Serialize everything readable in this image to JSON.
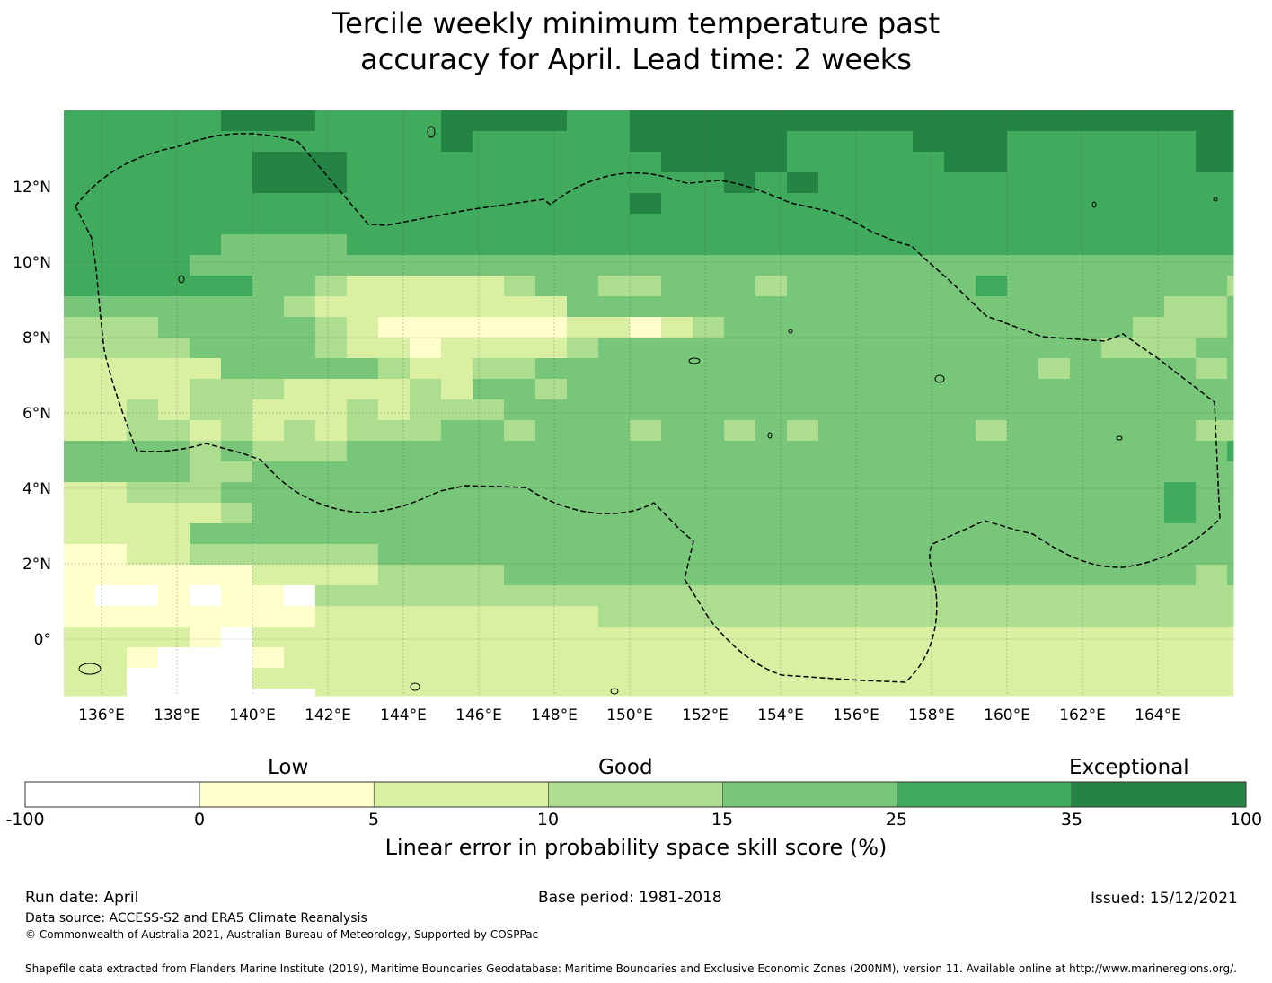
{
  "title": {
    "line1": "Tercile weekly minimum temperature past",
    "line2": "accuracy for April. Lead time: 2 weeks"
  },
  "map": {
    "lon_labels": [
      "136°E",
      "138°E",
      "140°E",
      "142°E",
      "144°E",
      "146°E",
      "148°E",
      "150°E",
      "152°E",
      "154°E",
      "156°E",
      "158°E",
      "160°E",
      "162°E",
      "164°E"
    ],
    "lat_labels": [
      "12°N",
      "10°N",
      "8°N",
      "6°N",
      "4°N",
      "2°N",
      "0°"
    ],
    "lon_range": [
      135,
      166
    ],
    "lat_range": [
      -1.5,
      14
    ],
    "boundary": "Maritime boundary (dashed outline)"
  },
  "colorbar": {
    "categories": [
      "Low",
      "Good",
      "Exceptional"
    ],
    "ticks": [
      "-100",
      "0",
      "5",
      "10",
      "15",
      "25",
      "35",
      "100"
    ],
    "colors": [
      "#ffffff",
      "#ffffcc",
      "#d9f0a3",
      "#addd8e",
      "#78c679",
      "#41ab5d",
      "#238443"
    ],
    "title": "Linear error in probability space skill score (%)"
  },
  "footer": {
    "run_date": "Run date: April",
    "base_period": "Base period: 1981-2018",
    "issued": "Issued: 15/12/2021",
    "data_source": "Data source: ACCESS-S2 and ERA5 Climate Reanalysis",
    "copyright": "© Commonwealth of Australia 2021, Australian Bureau of Meteorology, Supported by COSPPac",
    "shapefile": "Shapefile data extracted from Flanders Marine Institute (2019), Maritime Boundaries Geodatabase: Maritime Boundaries and Exclusive Economic Zones (200NM), version 11. Available online at http://www.marineregions.org/."
  }
}
